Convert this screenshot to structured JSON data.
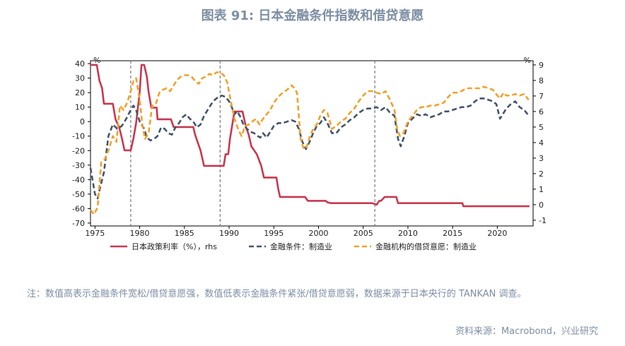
{
  "figure": {
    "title": "图表 91: 日本金融条件指数和借贷意愿",
    "note": "注：数值高表示金融条件宽松/借贷意愿强，数值低表示金融条件紧张/借贷意愿弱，数据来源于日本央行的 TANKAN 调查。",
    "source": "资料来源：Macrobond，兴业研究"
  },
  "chart_data": {
    "type": "line",
    "left_axis_unit": "%",
    "right_axis_unit": "%",
    "x_ticks": [
      1975,
      1980,
      1985,
      1990,
      1995,
      2000,
      2005,
      2010,
      2015,
      2020
    ],
    "left_ticks": [
      40,
      30,
      20,
      10,
      0,
      -10,
      -20,
      -30,
      -40,
      -50,
      -60,
      -70
    ],
    "right_ticks": [
      9,
      8,
      7,
      6,
      5,
      4,
      3,
      2,
      1,
      0,
      -1
    ],
    "xlim": [
      1974.5,
      2024
    ],
    "ylim_left": [
      -72,
      42
    ],
    "ylim_right": [
      -1.37,
      9.27
    ],
    "vlines": [
      1979,
      1989,
      2006.3
    ],
    "series": [
      {
        "name": "日本政策利率（%），rhs",
        "axis": "right",
        "color": "#c8384f",
        "style": "solid",
        "points": [
          [
            1974.5,
            9
          ],
          [
            1975.2,
            9
          ],
          [
            1975.5,
            8
          ],
          [
            1975.8,
            7.5
          ],
          [
            1976.0,
            6.5
          ],
          [
            1976.5,
            6.5
          ],
          [
            1977.0,
            6.5
          ],
          [
            1977.3,
            5.5
          ],
          [
            1977.7,
            5
          ],
          [
            1978.0,
            4.3
          ],
          [
            1978.3,
            3.5
          ],
          [
            1979.0,
            3.5
          ],
          [
            1979.3,
            4.25
          ],
          [
            1979.6,
            5.25
          ],
          [
            1980.0,
            7.25
          ],
          [
            1980.2,
            9
          ],
          [
            1980.5,
            9
          ],
          [
            1980.8,
            8.25
          ],
          [
            1981.0,
            7.25
          ],
          [
            1981.3,
            6.25
          ],
          [
            1981.9,
            6.25
          ],
          [
            1982.0,
            5.5
          ],
          [
            1983.5,
            5.5
          ],
          [
            1983.8,
            5
          ],
          [
            1986.0,
            5
          ],
          [
            1986.2,
            4.5
          ],
          [
            1986.5,
            4
          ],
          [
            1986.8,
            3.5
          ],
          [
            1987.2,
            2.5
          ],
          [
            1989.4,
            2.5
          ],
          [
            1989.6,
            3.25
          ],
          [
            1989.9,
            3.25
          ],
          [
            1990.1,
            4.25
          ],
          [
            1990.6,
            6
          ],
          [
            1991.5,
            6
          ],
          [
            1991.7,
            5.5
          ],
          [
            1991.9,
            5
          ],
          [
            1992.2,
            4.5
          ],
          [
            1992.5,
            3.75
          ],
          [
            1993.1,
            3.25
          ],
          [
            1993.6,
            2.5
          ],
          [
            1993.9,
            1.75
          ],
          [
            1995.3,
            1.75
          ],
          [
            1995.5,
            1
          ],
          [
            1995.7,
            0.5
          ],
          [
            1998.5,
            0.5
          ],
          [
            1998.8,
            0.25
          ],
          [
            2000.5,
            0.25
          ],
          [
            2000.8,
            0.25
          ],
          [
            2001.0,
            0.15
          ],
          [
            2001.4,
            0.1
          ],
          [
            2006.0,
            0.1
          ],
          [
            2006.5,
            0
          ],
          [
            2006.8,
            0.25
          ],
          [
            2007.0,
            0.25
          ],
          [
            2007.4,
            0.5
          ],
          [
            2008.7,
            0.5
          ],
          [
            2008.9,
            0.1
          ],
          [
            2012.0,
            0.1
          ],
          [
            2016.1,
            0.1
          ],
          [
            2016.2,
            -0.1
          ],
          [
            2023.6,
            -0.1
          ]
        ]
      },
      {
        "name": "金融条件：制造业",
        "axis": "left",
        "color": "#44546a",
        "style": "dash",
        "points": [
          [
            1974.5,
            -32
          ],
          [
            1975.0,
            -50
          ],
          [
            1975.3,
            -53
          ],
          [
            1975.6,
            -45
          ],
          [
            1976.0,
            -35
          ],
          [
            1976.5,
            -10
          ],
          [
            1977.0,
            -2
          ],
          [
            1977.5,
            -5
          ],
          [
            1978.0,
            -3
          ],
          [
            1978.5,
            2
          ],
          [
            1979.0,
            8
          ],
          [
            1979.3,
            11
          ],
          [
            1979.6,
            8
          ],
          [
            1980.0,
            0
          ],
          [
            1980.5,
            -5
          ],
          [
            1980.8,
            -11
          ],
          [
            1981.2,
            -13
          ],
          [
            1981.6,
            -12
          ],
          [
            1982.0,
            -10
          ],
          [
            1982.4,
            -4
          ],
          [
            1982.8,
            -5
          ],
          [
            1983.2,
            -8
          ],
          [
            1983.6,
            -9
          ],
          [
            1984.0,
            -4
          ],
          [
            1984.4,
            -1
          ],
          [
            1984.8,
            3
          ],
          [
            1985.2,
            5
          ],
          [
            1985.6,
            2
          ],
          [
            1986.0,
            0
          ],
          [
            1986.4,
            -4
          ],
          [
            1986.8,
            -2
          ],
          [
            1987.2,
            4
          ],
          [
            1987.6,
            8
          ],
          [
            1988.0,
            12
          ],
          [
            1988.4,
            15
          ],
          [
            1988.8,
            17
          ],
          [
            1989.2,
            18
          ],
          [
            1989.6,
            17
          ],
          [
            1990.0,
            14
          ],
          [
            1990.3,
            10
          ],
          [
            1990.6,
            5
          ],
          [
            1990.9,
            7
          ],
          [
            1991.2,
            4
          ],
          [
            1991.6,
            -2
          ],
          [
            1992.0,
            -5
          ],
          [
            1992.4,
            -7
          ],
          [
            1992.8,
            -8
          ],
          [
            1993.2,
            -10
          ],
          [
            1993.5,
            -11
          ],
          [
            1993.8,
            -8
          ],
          [
            1994.2,
            -11
          ],
          [
            1994.6,
            -7
          ],
          [
            1995.0,
            -3
          ],
          [
            1995.5,
            -1
          ],
          [
            1996.0,
            -1
          ],
          [
            1996.5,
            0
          ],
          [
            1997.0,
            1
          ],
          [
            1997.4,
            0
          ],
          [
            1997.8,
            -5
          ],
          [
            1998.2,
            -14
          ],
          [
            1998.6,
            -19
          ],
          [
            1999.0,
            -14
          ],
          [
            1999.4,
            -8
          ],
          [
            1999.8,
            -3
          ],
          [
            2000.2,
            -1
          ],
          [
            2000.6,
            3
          ],
          [
            2001.0,
            -1
          ],
          [
            2001.5,
            -8
          ],
          [
            2002.0,
            -8
          ],
          [
            2002.5,
            -4
          ],
          [
            2003.0,
            -2
          ],
          [
            2003.5,
            1
          ],
          [
            2004.0,
            3
          ],
          [
            2004.5,
            6
          ],
          [
            2005.0,
            8
          ],
          [
            2005.5,
            9
          ],
          [
            2006.0,
            9
          ],
          [
            2006.5,
            10
          ],
          [
            2007.0,
            8
          ],
          [
            2007.5,
            10
          ],
          [
            2008.0,
            6
          ],
          [
            2008.5,
            4
          ],
          [
            2008.9,
            -12
          ],
          [
            2009.2,
            -17
          ],
          [
            2009.6,
            -10
          ],
          [
            2010.0,
            -1
          ],
          [
            2010.5,
            2
          ],
          [
            2011.0,
            5
          ],
          [
            2011.5,
            4
          ],
          [
            2012.0,
            5
          ],
          [
            2012.5,
            3
          ],
          [
            2013.0,
            4
          ],
          [
            2013.5,
            5
          ],
          [
            2014.0,
            7
          ],
          [
            2014.5,
            7
          ],
          [
            2015.0,
            8
          ],
          [
            2015.5,
            9
          ],
          [
            2016.0,
            10
          ],
          [
            2016.5,
            10
          ],
          [
            2017.0,
            11
          ],
          [
            2017.5,
            14
          ],
          [
            2018.0,
            16
          ],
          [
            2018.5,
            16
          ],
          [
            2019.0,
            15
          ],
          [
            2019.5,
            14
          ],
          [
            2019.9,
            12
          ],
          [
            2020.3,
            2
          ],
          [
            2020.7,
            6
          ],
          [
            2021.0,
            9
          ],
          [
            2021.5,
            12
          ],
          [
            2022.0,
            14
          ],
          [
            2022.5,
            10
          ],
          [
            2023.0,
            8
          ],
          [
            2023.4,
            5
          ]
        ]
      },
      {
        "name": "金融机构的借贷意愿：制造业",
        "axis": "left",
        "color": "#f0a22c",
        "style": "dash",
        "points": [
          [
            1974.5,
            -61
          ],
          [
            1974.9,
            -64
          ],
          [
            1975.3,
            -59
          ],
          [
            1975.7,
            -28
          ],
          [
            1976.1,
            -26
          ],
          [
            1976.5,
            -20
          ],
          [
            1977.0,
            -10
          ],
          [
            1977.4,
            -14
          ],
          [
            1977.8,
            11
          ],
          [
            1978.2,
            8
          ],
          [
            1978.6,
            13
          ],
          [
            1979.0,
            21
          ],
          [
            1979.3,
            28
          ],
          [
            1979.6,
            30
          ],
          [
            1980.0,
            15
          ],
          [
            1980.3,
            -2
          ],
          [
            1980.6,
            -12
          ],
          [
            1981.0,
            -8
          ],
          [
            1981.4,
            11
          ],
          [
            1981.8,
            12
          ],
          [
            1982.2,
            20
          ],
          [
            1982.6,
            22
          ],
          [
            1983.0,
            23
          ],
          [
            1983.4,
            21
          ],
          [
            1983.8,
            25
          ],
          [
            1984.2,
            29
          ],
          [
            1984.6,
            31
          ],
          [
            1985.0,
            32
          ],
          [
            1985.4,
            32
          ],
          [
            1985.8,
            31
          ],
          [
            1986.2,
            28
          ],
          [
            1986.6,
            26
          ],
          [
            1987.0,
            30
          ],
          [
            1987.4,
            31
          ],
          [
            1987.8,
            33
          ],
          [
            1988.2,
            32
          ],
          [
            1988.6,
            34
          ],
          [
            1989.0,
            34
          ],
          [
            1989.4,
            32
          ],
          [
            1989.8,
            27
          ],
          [
            1990.2,
            14
          ],
          [
            1990.6,
            2
          ],
          [
            1991.0,
            -5
          ],
          [
            1991.4,
            -10
          ],
          [
            1991.8,
            -3
          ],
          [
            1992.2,
            -2
          ],
          [
            1992.6,
            0
          ],
          [
            1993.0,
            2
          ],
          [
            1993.4,
            -2
          ],
          [
            1993.8,
            2
          ],
          [
            1994.2,
            5
          ],
          [
            1994.6,
            8
          ],
          [
            1995.0,
            13
          ],
          [
            1995.5,
            17
          ],
          [
            1996.0,
            20
          ],
          [
            1996.5,
            22
          ],
          [
            1997.0,
            25
          ],
          [
            1997.3,
            23
          ],
          [
            1997.6,
            20
          ],
          [
            1998.0,
            -12
          ],
          [
            1998.3,
            -18
          ],
          [
            1998.6,
            -19
          ],
          [
            1999.0,
            -11
          ],
          [
            1999.4,
            -5
          ],
          [
            1999.8,
            -2
          ],
          [
            2000.2,
            4
          ],
          [
            2000.6,
            8
          ],
          [
            2001.0,
            6
          ],
          [
            2001.5,
            -5
          ],
          [
            2002.0,
            -3
          ],
          [
            2002.5,
            0
          ],
          [
            2003.0,
            2
          ],
          [
            2003.5,
            6
          ],
          [
            2004.0,
            9
          ],
          [
            2004.5,
            14
          ],
          [
            2005.0,
            18
          ],
          [
            2005.5,
            21
          ],
          [
            2006.0,
            21
          ],
          [
            2006.5,
            20
          ],
          [
            2007.0,
            19
          ],
          [
            2007.5,
            21
          ],
          [
            2008.0,
            15
          ],
          [
            2008.5,
            8
          ],
          [
            2008.8,
            -5
          ],
          [
            2009.1,
            -10
          ],
          [
            2009.5,
            -8
          ],
          [
            2010.0,
            0
          ],
          [
            2010.5,
            4
          ],
          [
            2011.0,
            8
          ],
          [
            2011.5,
            10
          ],
          [
            2012.0,
            10
          ],
          [
            2012.5,
            11
          ],
          [
            2013.0,
            11
          ],
          [
            2013.5,
            12
          ],
          [
            2014.0,
            13
          ],
          [
            2014.5,
            17
          ],
          [
            2015.0,
            20
          ],
          [
            2015.5,
            20
          ],
          [
            2016.0,
            21
          ],
          [
            2016.5,
            23
          ],
          [
            2017.0,
            23
          ],
          [
            2017.5,
            23
          ],
          [
            2018.0,
            23
          ],
          [
            2018.5,
            24
          ],
          [
            2019.0,
            23
          ],
          [
            2019.5,
            22
          ],
          [
            2020.0,
            18
          ],
          [
            2020.3,
            16
          ],
          [
            2020.7,
            20
          ],
          [
            2021.0,
            18
          ],
          [
            2021.5,
            18
          ],
          [
            2022.0,
            19
          ],
          [
            2022.5,
            18
          ],
          [
            2023.0,
            19
          ],
          [
            2023.5,
            15
          ]
        ]
      }
    ]
  }
}
